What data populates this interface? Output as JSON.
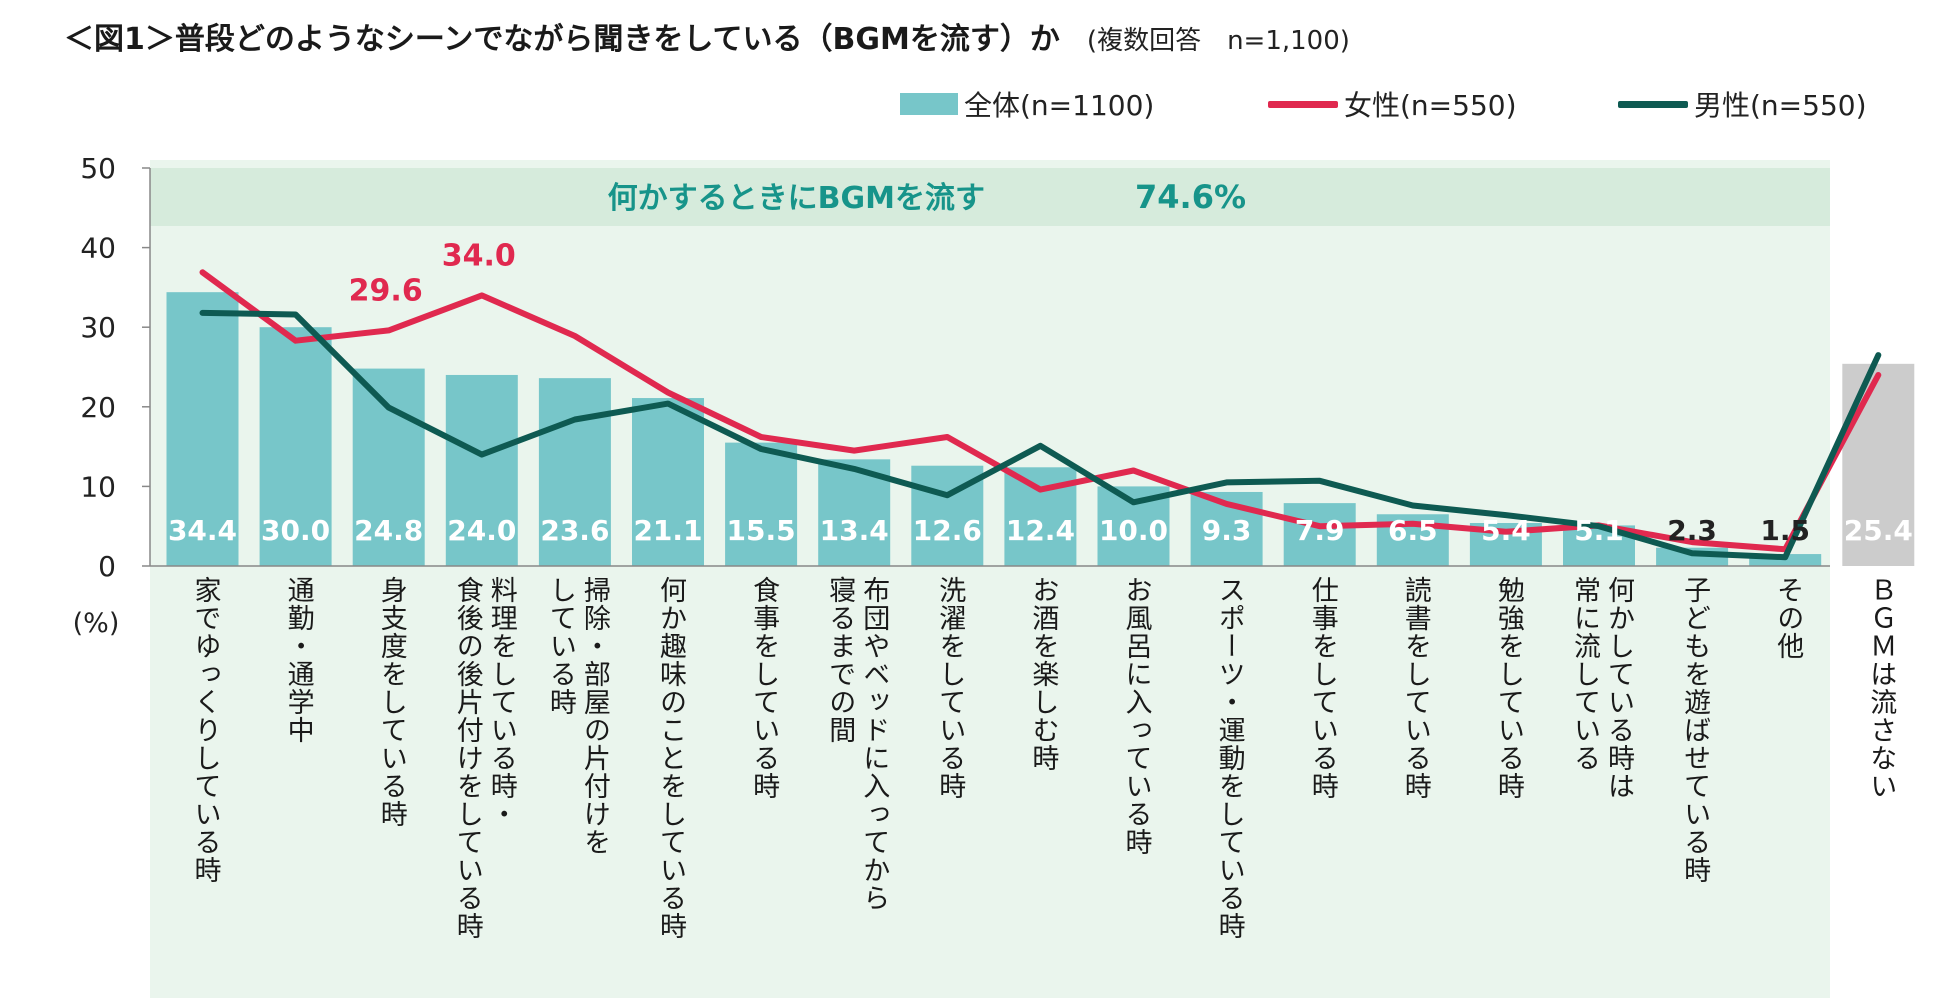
{
  "title": {
    "main": "＜図1＞普段どのようなシーンでながら聞きをしている（BGMを流す）か",
    "note": "(複数回答　n=1,100)"
  },
  "colors": {
    "bar": "#77c6c9",
    "bar_other": "#cccccc",
    "female": "#e0294f",
    "male": "#0e5a52",
    "band": "#d6ebdc",
    "plot_bg": "#eaf5ed",
    "band_text": "#17948a"
  },
  "chart_data": {
    "type": "bar+line",
    "ylim": [
      0,
      50
    ],
    "yticks": [
      "0",
      "10",
      "20",
      "30",
      "40",
      "50"
    ],
    "yunit": "(%)",
    "band_label": "何かするときにBGMを流す",
    "band_value": "74.6%",
    "legend": {
      "total": "全体(n=1100)",
      "female": "女性(n=550)",
      "male": "男性(n=550)"
    },
    "categories": [
      "家でゆっくりしている時",
      "通勤・通学中",
      "身支度をしている時",
      "料理をしている時・\n食後の後片付けをしている時",
      "掃除・部屋の片付けを\nしている時",
      "何か趣味のことをしている時",
      "食事をしている時",
      "布団やベッドに入ってから\n寝るまでの間",
      "洗濯をしている時",
      "お酒を楽しむ時",
      "お風呂に入っている時",
      "スポーツ・運動をしている時",
      "仕事をしている時",
      "読書をしている時",
      "勉強をしている時",
      "何かしている時は\n常に流している",
      "子どもを遊ばせている時",
      "その他",
      "ＢＧＭは流さない"
    ],
    "series": [
      {
        "name": "全体(n=1100)",
        "type": "bar",
        "values": [
          34.4,
          30.0,
          24.8,
          24.0,
          23.6,
          21.1,
          15.5,
          13.4,
          12.6,
          12.4,
          10.0,
          9.3,
          7.9,
          6.5,
          5.4,
          5.1,
          2.3,
          1.5,
          25.4
        ],
        "labels": [
          "34.4",
          "30.0",
          "24.8",
          "24.0",
          "23.6",
          "21.1",
          "15.5",
          "13.4",
          "12.6",
          "12.4",
          "10.0",
          "9.3",
          "7.9",
          "6.5",
          "5.4",
          "5.1",
          "2.3",
          "1.5",
          "25.4"
        ]
      },
      {
        "name": "女性(n=550)",
        "type": "line",
        "values": [
          36.9,
          28.3,
          29.6,
          34.0,
          28.9,
          21.8,
          16.2,
          14.5,
          16.2,
          9.6,
          12.0,
          7.8,
          5.0,
          5.3,
          4.3,
          5.1,
          3.0,
          2.1,
          24.0
        ],
        "callouts": [
          {
            "index": 2,
            "text": "29.6"
          },
          {
            "index": 3,
            "text": "34.0"
          }
        ]
      },
      {
        "name": "男性(n=550)",
        "type": "line",
        "values": [
          31.8,
          31.6,
          19.9,
          14.0,
          18.4,
          20.4,
          14.7,
          12.2,
          8.9,
          15.1,
          8.0,
          10.5,
          10.7,
          7.6,
          6.4,
          5.0,
          1.6,
          1.1,
          26.5
        ]
      }
    ]
  }
}
